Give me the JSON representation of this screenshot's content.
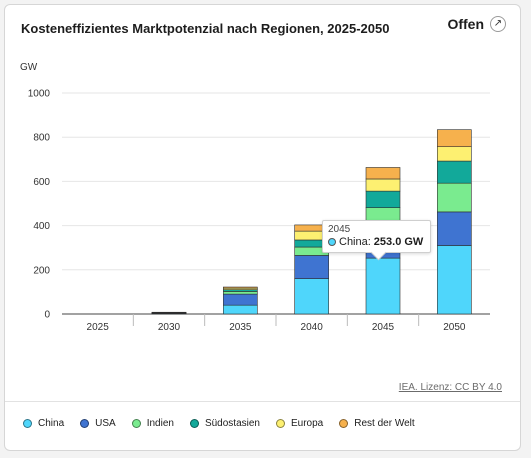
{
  "header": {
    "title": "Kosteneffizientes Marktpotenzial nach Regionen, 2025-2050",
    "open_label": "Offen",
    "open_icon": "external-link-icon"
  },
  "source_label": "IEA. Lizenz: CC BY 4.0",
  "tooltip": {
    "year": "2045",
    "series": "China:",
    "value": "253.0 GW"
  },
  "chart_data": {
    "type": "bar",
    "stacked": true,
    "unit": "GW",
    "categories": [
      "2025",
      "2030",
      "2035",
      "2040",
      "2045",
      "2050"
    ],
    "yticks": [
      "0",
      "200",
      "400",
      "600",
      "800",
      "1000"
    ],
    "ylim": [
      0,
      1000
    ],
    "grid": true,
    "legend_position": "bottom-left",
    "series": [
      {
        "name": "China",
        "color": "#4fd6fb",
        "values": [
          0,
          2,
          40,
          160,
          253,
          310
        ]
      },
      {
        "name": "USA",
        "color": "#3f74d1",
        "values": [
          0,
          2,
          50,
          105,
          148,
          152
        ]
      },
      {
        "name": "Indien",
        "color": "#7aeb8f",
        "values": [
          0,
          1,
          12,
          38,
          80,
          130
        ]
      },
      {
        "name": "Südostasien",
        "color": "#12a99a",
        "values": [
          0,
          1,
          8,
          32,
          75,
          100
        ]
      },
      {
        "name": "Europa",
        "color": "#fdf071",
        "values": [
          0,
          1,
          7,
          40,
          55,
          65
        ]
      },
      {
        "name": "Rest der Welt",
        "color": "#f6b14d",
        "values": [
          0,
          1,
          5,
          28,
          52,
          77
        ]
      }
    ]
  }
}
